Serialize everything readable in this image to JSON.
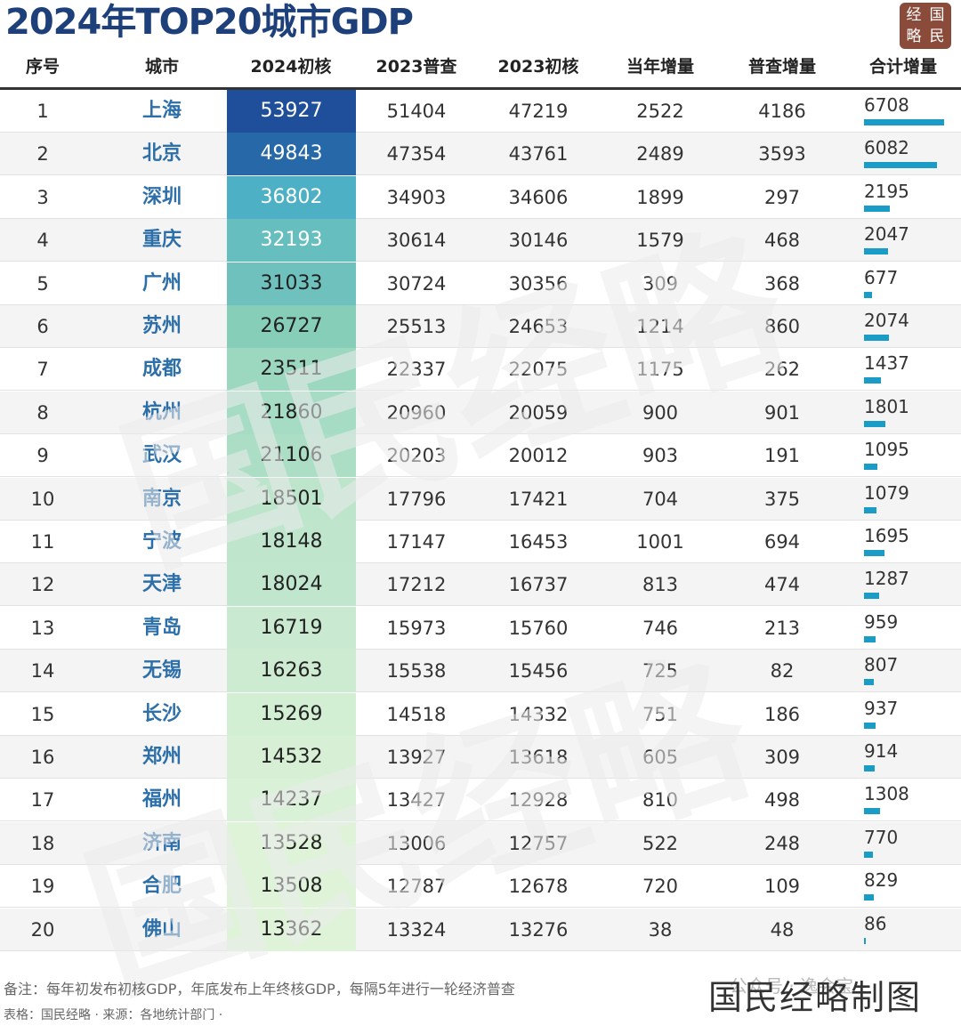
{
  "title": "2024年TOP20城市GDP",
  "logo": [
    "经",
    "国",
    "略",
    "民"
  ],
  "chart_data": {
    "type": "table",
    "columns": [
      "序号",
      "城市",
      "2024初核",
      "2023普查",
      "2023初核",
      "当年增量",
      "普查增量",
      "合计增量"
    ],
    "rows": [
      {
        "rank": "1",
        "city": "上海",
        "gdp2024": 53927,
        "census2023": 51404,
        "prelim2023": 47219,
        "yoy": 2522,
        "census_inc": 4186,
        "total": 6708
      },
      {
        "rank": "2",
        "city": "北京",
        "gdp2024": 49843,
        "census2023": 47354,
        "prelim2023": 43761,
        "yoy": 2489,
        "census_inc": 3593,
        "total": 6082
      },
      {
        "rank": "3",
        "city": "深圳",
        "gdp2024": 36802,
        "census2023": 34903,
        "prelim2023": 34606,
        "yoy": 1899,
        "census_inc": 297,
        "total": 2195
      },
      {
        "rank": "4",
        "city": "重庆",
        "gdp2024": 32193,
        "census2023": 30614,
        "prelim2023": 30146,
        "yoy": 1579,
        "census_inc": 468,
        "total": 2047
      },
      {
        "rank": "5",
        "city": "广州",
        "gdp2024": 31033,
        "census2023": 30724,
        "prelim2023": 30356,
        "yoy": 309,
        "census_inc": 368,
        "total": 677
      },
      {
        "rank": "6",
        "city": "苏州",
        "gdp2024": 26727,
        "census2023": 25513,
        "prelim2023": 24653,
        "yoy": 1214,
        "census_inc": 860,
        "total": 2074
      },
      {
        "rank": "7",
        "city": "成都",
        "gdp2024": 23511,
        "census2023": 22337,
        "prelim2023": 22075,
        "yoy": 1175,
        "census_inc": 262,
        "total": 1437
      },
      {
        "rank": "8",
        "city": "杭州",
        "gdp2024": 21860,
        "census2023": 20960,
        "prelim2023": 20059,
        "yoy": 900,
        "census_inc": 901,
        "total": 1801
      },
      {
        "rank": "9",
        "city": "武汉",
        "gdp2024": 21106,
        "census2023": 20203,
        "prelim2023": 20012,
        "yoy": 903,
        "census_inc": 191,
        "total": 1095
      },
      {
        "rank": "10",
        "city": "南京",
        "gdp2024": 18501,
        "census2023": 17796,
        "prelim2023": 17421,
        "yoy": 704,
        "census_inc": 375,
        "total": 1079
      },
      {
        "rank": "11",
        "city": "宁波",
        "gdp2024": 18148,
        "census2023": 17147,
        "prelim2023": 16453,
        "yoy": 1001,
        "census_inc": 694,
        "total": 1695
      },
      {
        "rank": "12",
        "city": "天津",
        "gdp2024": 18024,
        "census2023": 17212,
        "prelim2023": 16737,
        "yoy": 813,
        "census_inc": 474,
        "total": 1287
      },
      {
        "rank": "13",
        "city": "青岛",
        "gdp2024": 16719,
        "census2023": 15973,
        "prelim2023": 15760,
        "yoy": 746,
        "census_inc": 213,
        "total": 959
      },
      {
        "rank": "14",
        "city": "无锡",
        "gdp2024": 16263,
        "census2023": 15538,
        "prelim2023": 15456,
        "yoy": 725,
        "census_inc": 82,
        "total": 807
      },
      {
        "rank": "15",
        "city": "长沙",
        "gdp2024": 15269,
        "census2023": 14518,
        "prelim2023": 14332,
        "yoy": 751,
        "census_inc": 186,
        "total": 937
      },
      {
        "rank": "16",
        "city": "郑州",
        "gdp2024": 14532,
        "census2023": 13927,
        "prelim2023": 13618,
        "yoy": 605,
        "census_inc": 309,
        "total": 914
      },
      {
        "rank": "17",
        "city": "福州",
        "gdp2024": 14237,
        "census2023": 13427,
        "prelim2023": 12928,
        "yoy": 810,
        "census_inc": 498,
        "total": 1308
      },
      {
        "rank": "18",
        "city": "济南",
        "gdp2024": 13528,
        "census2023": 13006,
        "prelim2023": 12757,
        "yoy": 522,
        "census_inc": 248,
        "total": 770
      },
      {
        "rank": "19",
        "city": "合肥",
        "gdp2024": 13508,
        "census2023": 12787,
        "prelim2023": 12678,
        "yoy": 720,
        "census_inc": 109,
        "total": 829
      },
      {
        "rank": "20",
        "city": "佛山",
        "gdp2024": 13362,
        "census2023": 13324,
        "prelim2023": 13276,
        "yoy": 38,
        "census_inc": 48,
        "total": 86
      }
    ],
    "colors": {
      "heat_high": "#1f4e9a",
      "heat_mid": "#3aa6c8",
      "heat_low_mid": "#86ceb8",
      "heat_low": "#dff3d8",
      "bar": "#1a9cc6",
      "city_text": "#2d6fa8",
      "title_text": "#1d3f7a"
    }
  },
  "watermark_text": "国民经略",
  "footer": {
    "note": "备注：每年初发布初核GDP，年底发布上年终核GDP，每隔5年进行一轮经济普查",
    "source": "表格：国民经略 · 来源：各地统计部门 ·",
    "wechat": "公众号 · 逸会宝",
    "stamp": "国民经略制图"
  }
}
